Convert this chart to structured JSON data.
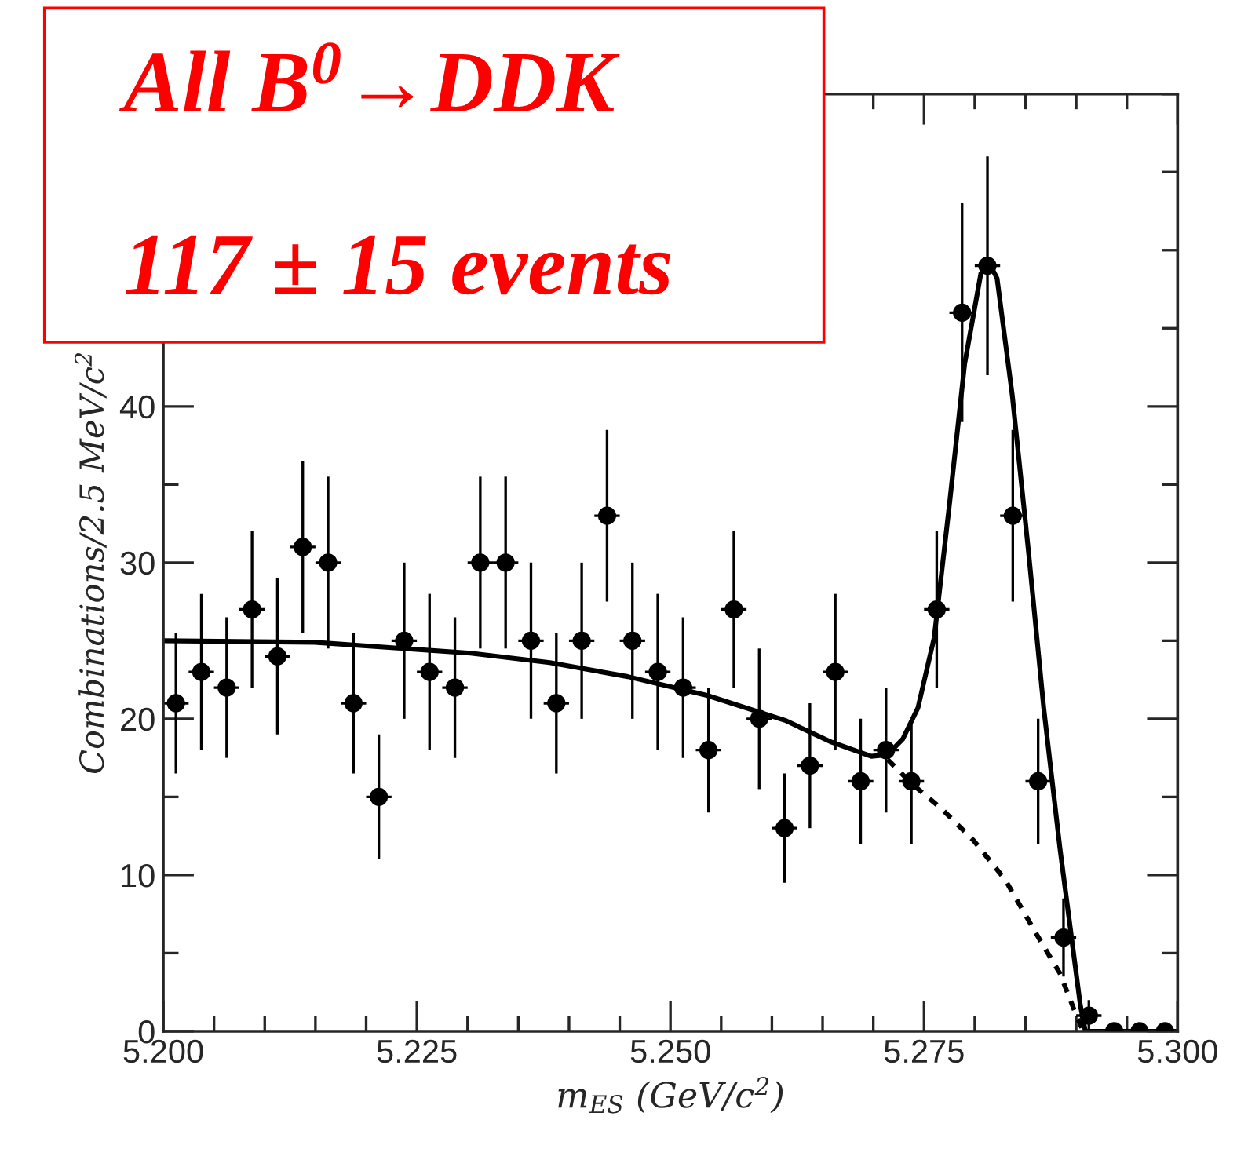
{
  "chart_data": {
    "type": "scatter",
    "xlabel": "m$_{ES}$ (GeV/c$^{2}$)",
    "ylabel": "Combinations/2.5 MeV/c$^{2}$",
    "annotations": [
      "All B$^{0}$→DDK",
      "117 ± 15 events"
    ],
    "xlim": [
      5.2,
      5.3
    ],
    "ylim": [
      0,
      60
    ],
    "xticks": [
      {
        "value": 5.2,
        "label": "5.200"
      },
      {
        "value": 5.225,
        "label": "5.225"
      },
      {
        "value": 5.25,
        "label": "5.250"
      },
      {
        "value": 5.275,
        "label": "5.275"
      },
      {
        "value": 5.3,
        "label": "5.300"
      }
    ],
    "yticks": [
      0,
      10,
      20,
      30,
      40
    ],
    "series": [
      {
        "color": "#000000",
        "marker": "circle",
        "x": [
          5.20125,
          5.20375,
          5.20625,
          5.20875,
          5.21125,
          5.21375,
          5.21625,
          5.21875,
          5.22125,
          5.22375,
          5.22625,
          5.22875,
          5.23125,
          5.23375,
          5.23625,
          5.23875,
          5.24125,
          5.24375,
          5.24625,
          5.24875,
          5.25125,
          5.25375,
          5.25625,
          5.25875,
          5.26125,
          5.26375,
          5.26625,
          5.26875,
          5.27125,
          5.27375,
          5.27625,
          5.27875,
          5.28125,
          5.28375,
          5.28625,
          5.28875,
          5.29125,
          5.29375,
          5.29625,
          5.29875
        ],
        "values": [
          21,
          23,
          22,
          27,
          24,
          31,
          30,
          21,
          15,
          25,
          23,
          22,
          30,
          30,
          25,
          21,
          25,
          33,
          25,
          23,
          22,
          18,
          27,
          20,
          13,
          17,
          23,
          16,
          18,
          16,
          27,
          46,
          49,
          33,
          16,
          6,
          1,
          0,
          0,
          0
        ],
        "errors": [
          4.5,
          5,
          4.5,
          5,
          5,
          5.5,
          5.5,
          4.5,
          4,
          5,
          5,
          4.5,
          5.5,
          5.5,
          5,
          4.5,
          5,
          5.5,
          5,
          5,
          4.5,
          4,
          5,
          4.5,
          3.5,
          4,
          5,
          4,
          4,
          4,
          5,
          7,
          7,
          5.5,
          4,
          2.5,
          1,
          null,
          null,
          null
        ],
        "xerrors": [
          0.00125,
          0.00125,
          0.00125,
          0.00125,
          0.00125,
          0.00125,
          0.00125,
          0.00125,
          0.00125,
          0.00125,
          0.00125,
          0.00125,
          0.00125,
          0.00125,
          0.00125,
          0.00125,
          0.00125,
          0.00125,
          0.00125,
          0.00125,
          0.00125,
          0.00125,
          0.00125,
          0.00125,
          0.00125,
          0.00125,
          0.00125,
          0.00125,
          0.00125,
          0.00125,
          0.00125,
          0.00125,
          0.00125,
          0.00125,
          0.00125,
          0.00125,
          0.00125,
          null,
          null,
          null
        ]
      },
      {
        "type": "line",
        "color": "#000000",
        "line_style": "solid",
        "x": [
          5.2,
          5.2149,
          5.2303,
          5.2381,
          5.2458,
          5.2536,
          5.2613,
          5.2659,
          5.2698,
          5.2714,
          5.2729,
          5.2744,
          5.276,
          5.2775,
          5.279,
          5.2806,
          5.2814,
          5.2822,
          5.2837,
          5.2853,
          5.2868,
          5.2884,
          5.2896,
          5.2904,
          5.2909,
          5.3
        ],
        "values": [
          25,
          24.9,
          24.2,
          23.6,
          22.7,
          21.5,
          19.9,
          18.5,
          17.6,
          17.7,
          18.7,
          20.7,
          25.2,
          33.7,
          42.7,
          48.5,
          49.2,
          48.2,
          40.7,
          30.7,
          20.7,
          11.7,
          5.7,
          1.7,
          0,
          0
        ]
      },
      {
        "type": "line",
        "color": "#000000",
        "line_style": "dashed",
        "x": [
          5.2714,
          5.2737,
          5.2768,
          5.2799,
          5.283,
          5.2861,
          5.2884,
          5.2899,
          5.2907
        ],
        "values": [
          17.4,
          15.9,
          14.2,
          12.2,
          9.7,
          6.2,
          3.7,
          1.2,
          0
        ]
      }
    ]
  }
}
